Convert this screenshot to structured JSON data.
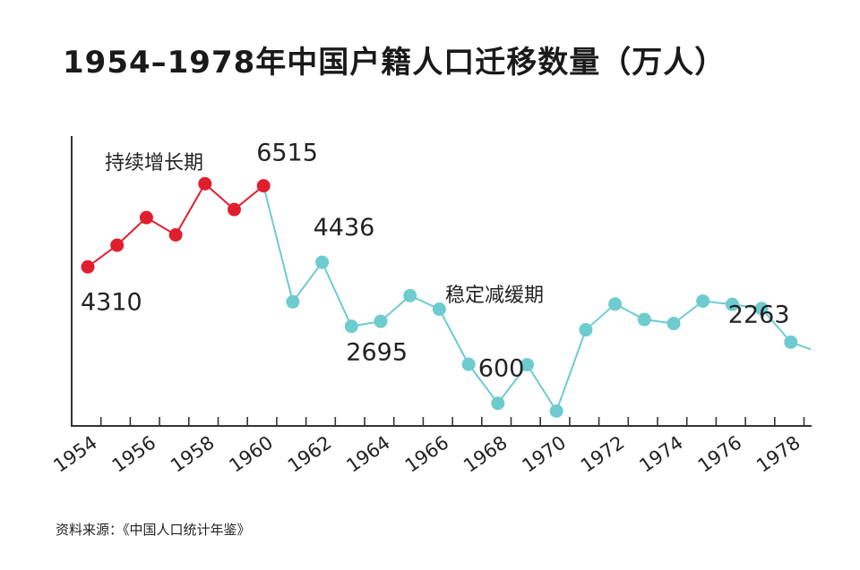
{
  "title": "1954–1978年中国户籍人口迁移数量（万人）",
  "source": "资料来源：《中国人口统计年鉴》",
  "colors": {
    "growth": "#e01e2d",
    "decline": "#6ecbcf",
    "axis": "#333333"
  },
  "chart_data": {
    "type": "line",
    "title": "1954–1978年中国户籍人口迁移数量（万人）",
    "xlabel": "",
    "ylabel": "",
    "x": [
      1954,
      1955,
      1956,
      1957,
      1958,
      1959,
      1960,
      1961,
      1962,
      1963,
      1964,
      1965,
      1966,
      1967,
      1968,
      1969,
      1970,
      1971,
      1972,
      1973,
      1974,
      1975,
      1976,
      1977,
      1978
    ],
    "values": [
      4310,
      4900,
      5650,
      5180,
      6570,
      5870,
      6515,
      3360,
      4436,
      2695,
      2830,
      3530,
      3160,
      1660,
      600,
      1650,
      390,
      2600,
      3300,
      2880,
      2770,
      3380,
      3290,
      3180,
      2263
    ],
    "ylim": [
      0,
      7500
    ],
    "xtick_labels": [
      "1954",
      "1956",
      "1958",
      "1960",
      "1962",
      "1964",
      "1966",
      "1968",
      "1970",
      "1972",
      "1974",
      "1976",
      "1978"
    ],
    "annotations": [
      {
        "text": "4310",
        "year": 1954
      },
      {
        "text": "6515",
        "year": 1960
      },
      {
        "text": "4436",
        "year": 1962
      },
      {
        "text": "2695",
        "year": 1963
      },
      {
        "text": "600",
        "year": 1968
      },
      {
        "text": "2263",
        "year": 1978
      }
    ],
    "phases": [
      {
        "label": "持续增长期",
        "start": 1954,
        "end": 1960,
        "color": "#e01e2d"
      },
      {
        "label": "稳定减缓期",
        "start": 1960,
        "end": 1978,
        "color": "#6ecbcf"
      }
    ],
    "grid": false,
    "legend": "none"
  }
}
